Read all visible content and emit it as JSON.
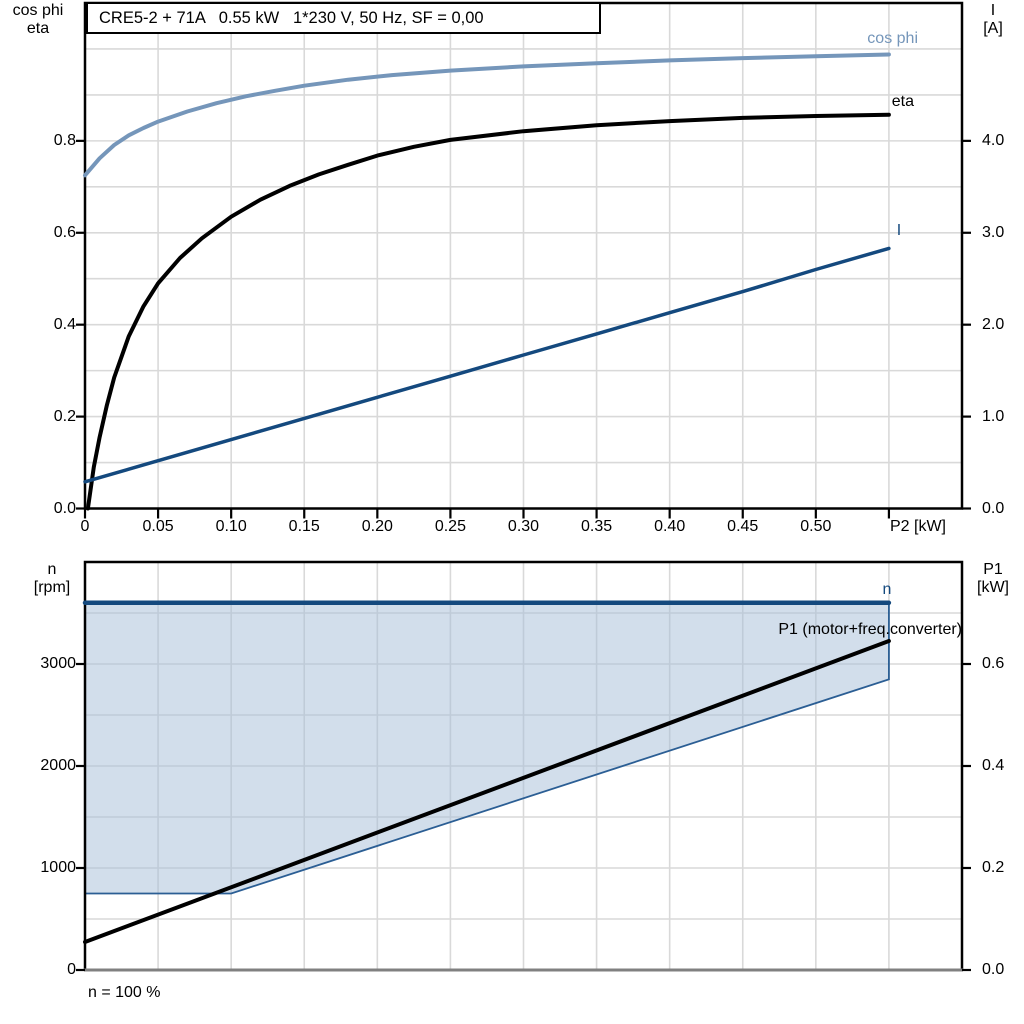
{
  "chart_data": [
    {
      "type": "line",
      "title": "CRE5-2 + 71A   0.55 kW   1*230 V, 50 Hz, SF = 0,00",
      "x_axis": {
        "label": "P2 [kW]",
        "min": 0,
        "max": 0.6,
        "grid_step": 0.05,
        "tick_values": [
          0,
          0.05,
          0.1,
          0.15,
          0.2,
          0.25,
          0.3,
          0.35,
          0.4,
          0.45,
          0.5,
          0.55
        ],
        "tick_labels": [
          "0",
          "0.05",
          "0.10",
          "0.15",
          "0.20",
          "0.25",
          "0.30",
          "0.35",
          "0.40",
          "0.45",
          "0.50",
          ""
        ]
      },
      "y_left": {
        "label_lines": [
          "cos phi",
          "eta"
        ],
        "min": 0,
        "max": 1.1,
        "grid_step": 0.1,
        "tick_values": [
          0,
          0.2,
          0.4,
          0.6,
          0.8
        ],
        "tick_labels": [
          "0.0",
          "0.2",
          "0.4",
          "0.6",
          "0.8"
        ]
      },
      "y_right": {
        "label_lines": [
          "I",
          "[A]"
        ],
        "min": 0,
        "max": 5.5,
        "tick_values": [
          0,
          1,
          2,
          3,
          4
        ],
        "tick_labels": [
          "0.0",
          "1.0",
          "2.0",
          "3.0",
          "4.0"
        ]
      },
      "grid": true,
      "series": [
        {
          "name": "cos phi",
          "axis": "left",
          "color": "#7596BA",
          "width": 4,
          "points": [
            [
              0,
              0.725
            ],
            [
              0.01,
              0.762
            ],
            [
              0.02,
              0.791
            ],
            [
              0.03,
              0.812
            ],
            [
              0.04,
              0.828
            ],
            [
              0.05,
              0.842
            ],
            [
              0.07,
              0.864
            ],
            [
              0.09,
              0.882
            ],
            [
              0.11,
              0.897
            ],
            [
              0.13,
              0.909
            ],
            [
              0.15,
              0.92
            ],
            [
              0.18,
              0.933
            ],
            [
              0.21,
              0.943
            ],
            [
              0.25,
              0.953
            ],
            [
              0.3,
              0.962
            ],
            [
              0.35,
              0.969
            ],
            [
              0.4,
              0.975
            ],
            [
              0.45,
              0.98
            ],
            [
              0.5,
              0.984
            ],
            [
              0.55,
              0.988
            ]
          ]
        },
        {
          "name": "eta",
          "axis": "left",
          "color": "#000000",
          "width": 4,
          "points": [
            [
              0.002,
              0
            ],
            [
              0.006,
              0.09
            ],
            [
              0.01,
              0.155
            ],
            [
              0.015,
              0.225
            ],
            [
              0.02,
              0.285
            ],
            [
              0.03,
              0.375
            ],
            [
              0.04,
              0.44
            ],
            [
              0.05,
              0.49
            ],
            [
              0.065,
              0.545
            ],
            [
              0.08,
              0.588
            ],
            [
              0.1,
              0.635
            ],
            [
              0.12,
              0.672
            ],
            [
              0.14,
              0.702
            ],
            [
              0.16,
              0.727
            ],
            [
              0.18,
              0.748
            ],
            [
              0.2,
              0.768
            ],
            [
              0.225,
              0.787
            ],
            [
              0.25,
              0.802
            ],
            [
              0.3,
              0.821
            ],
            [
              0.35,
              0.834
            ],
            [
              0.4,
              0.843
            ],
            [
              0.45,
              0.85
            ],
            [
              0.5,
              0.854
            ],
            [
              0.55,
              0.857
            ]
          ]
        },
        {
          "name": "I",
          "axis": "right",
          "color": "#14497E",
          "width": 3.5,
          "points": [
            [
              0,
              0.29
            ],
            [
              0.05,
              0.52
            ],
            [
              0.1,
              0.75
            ],
            [
              0.15,
              0.98
            ],
            [
              0.2,
              1.21
            ],
            [
              0.25,
              1.44
            ],
            [
              0.3,
              1.67
            ],
            [
              0.35,
              1.9
            ],
            [
              0.4,
              2.13
            ],
            [
              0.45,
              2.36
            ],
            [
              0.5,
              2.6
            ],
            [
              0.55,
              2.83
            ]
          ]
        }
      ]
    },
    {
      "type": "line",
      "title": "",
      "note": "n = 100 %",
      "x_axis": {
        "label": "",
        "min": 0,
        "max": 0.6,
        "grid_step": 0.05,
        "tick_values": [],
        "tick_labels": []
      },
      "y_left": {
        "label_lines": [
          "n",
          "[rpm]"
        ],
        "min": 0,
        "max": 4000,
        "grid_step": 500,
        "tick_values": [
          0,
          1000,
          2000,
          3000
        ],
        "tick_labels": [
          "0",
          "1000",
          "2000",
          "3000"
        ]
      },
      "y_right": {
        "label_lines": [
          "P1",
          "[kW]"
        ],
        "min": 0,
        "max": 0.8,
        "tick_values": [
          0,
          0.2,
          0.4,
          0.6
        ],
        "tick_labels": [
          "0.0",
          "0.2",
          "0.4",
          "0.6"
        ]
      },
      "grid": true,
      "operating_area": {
        "fill": "rgba(165,190,215,0.5)",
        "outline_color": "#2B5E94",
        "fill_points_rpm": [
          [
            0,
            3600
          ],
          [
            0.55,
            3600
          ],
          [
            0.55,
            2850
          ],
          [
            0.1,
            750
          ],
          [
            0,
            750
          ]
        ],
        "boundary_points_rpm": [
          [
            0,
            750
          ],
          [
            0.1,
            750
          ],
          [
            0.55,
            2850
          ],
          [
            0.55,
            3600
          ]
        ]
      },
      "series": [
        {
          "name": "n",
          "axis": "left",
          "color": "#14497E",
          "width": 4.5,
          "points": [
            [
              0,
              3600
            ],
            [
              0.55,
              3600
            ]
          ]
        },
        {
          "name": "P1 (motor+freq.converter)",
          "axis": "right",
          "color": "#000000",
          "width": 4,
          "points": [
            [
              0,
              0.055
            ],
            [
              0.55,
              0.645
            ]
          ]
        }
      ]
    }
  ],
  "style": {
    "grid_color": "#D9D9D9",
    "frame_color": "#000000",
    "bottom_axis_gray": "#808080",
    "dark_blue": "#14497E",
    "light_blue": "#7596BA"
  }
}
